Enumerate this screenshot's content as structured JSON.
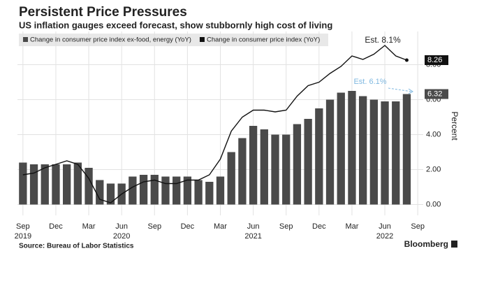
{
  "chart_data": {
    "type": "bar_line",
    "title": "Persistent Price Pressures",
    "subtitle": "US inflation gauges exceed forecast, show stubbornly high cost of living",
    "y_axis_label": "Percent",
    "source": "Source: Bureau of Labor Statistics",
    "brand": "Bloomberg",
    "categories": [
      "Sep",
      null,
      null,
      "Dec",
      null,
      null,
      "Mar",
      null,
      null,
      "Jun",
      null,
      null,
      "Sep",
      null,
      null,
      "Dec",
      null,
      null,
      "Mar",
      null,
      null,
      "Jun",
      null,
      null,
      "Sep",
      null,
      null,
      "Dec",
      null,
      null,
      "Mar",
      null,
      null,
      "Jun",
      null,
      null,
      "Sep"
    ],
    "years": [
      "2019",
      null,
      null,
      null,
      null,
      null,
      null,
      null,
      null,
      "2020",
      null,
      null,
      null,
      null,
      null,
      null,
      null,
      null,
      null,
      null,
      null,
      "2021",
      null,
      null,
      null,
      null,
      null,
      null,
      null,
      null,
      null,
      null,
      null,
      "2022",
      null,
      null,
      null
    ],
    "series": [
      {
        "name": "Change in consumer price index ex-food, energy (YoY)",
        "kind": "bar",
        "color": "#4a4a4a",
        "values": [
          2.4,
          2.3,
          2.3,
          2.3,
          2.3,
          2.4,
          2.1,
          1.4,
          1.2,
          1.2,
          1.6,
          1.7,
          1.7,
          1.6,
          1.6,
          1.6,
          1.4,
          1.3,
          1.6,
          3.0,
          3.8,
          4.5,
          4.3,
          4.0,
          4.0,
          4.6,
          4.9,
          5.5,
          6.0,
          6.4,
          6.5,
          6.2,
          6.0,
          5.9,
          5.9,
          6.32,
          null
        ]
      },
      {
        "name": "Change in consumer price index (YoY)",
        "kind": "line",
        "color": "#111111",
        "values": [
          1.7,
          1.8,
          2.1,
          2.3,
          2.5,
          2.3,
          1.5,
          0.3,
          0.1,
          0.6,
          1.0,
          1.3,
          1.4,
          1.2,
          1.2,
          1.4,
          1.4,
          1.7,
          2.6,
          4.2,
          5.0,
          5.4,
          5.4,
          5.3,
          5.4,
          6.2,
          6.8,
          7.0,
          7.5,
          7.9,
          8.5,
          8.3,
          8.6,
          9.1,
          8.5,
          8.26,
          null
        ]
      }
    ],
    "annotations": [
      {
        "text": "Est. 8.1%",
        "color": "#222222"
      },
      {
        "text": "Est. 6.1%",
        "color": "#7fb8e0"
      }
    ],
    "ylim": [
      -0.3,
      9.9
    ],
    "yticks": [
      {
        "value": 0,
        "label": "0.00"
      },
      {
        "value": 2,
        "label": "2.00"
      },
      {
        "value": 4,
        "label": "4.00"
      },
      {
        "value": 6,
        "label": "6.00"
      },
      {
        "value": 8,
        "label": "8.00"
      }
    ],
    "grid": true
  }
}
